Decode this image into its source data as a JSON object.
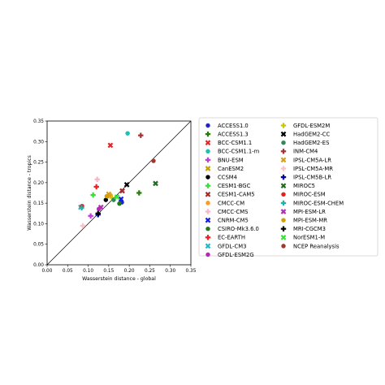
{
  "chart_data": {
    "type": "scatter",
    "title": "",
    "xlabel": "Wasserstein distance - global",
    "ylabel": "Wasserstein distance - tropics",
    "xlim": [
      0.0,
      0.35
    ],
    "ylim": [
      0.0,
      0.35
    ],
    "xticks": [
      "0.00",
      "0.05",
      "0.10",
      "0.15",
      "0.20",
      "0.25",
      "0.30",
      "0.35"
    ],
    "yticks": [
      "0.00",
      "0.05",
      "0.10",
      "0.15",
      "0.20",
      "0.25",
      "0.30",
      "0.35"
    ],
    "grid": false,
    "reference_line": "y = x",
    "legend_position": "right",
    "series": [
      {
        "name": "ACCESS1.0",
        "color": "#1f24c9",
        "marker": "circle",
        "x": 0.182,
        "y": 0.152
      },
      {
        "name": "ACCESS1.3",
        "color": "#2b7a0b",
        "marker": "plus",
        "x": 0.224,
        "y": 0.175
      },
      {
        "name": "BCC-CSM1.1",
        "color": "#e8232c",
        "marker": "x",
        "x": 0.154,
        "y": 0.291
      },
      {
        "name": "BCC-CSM1.1-m",
        "color": "#1bbfb5",
        "marker": "circle",
        "x": 0.196,
        "y": 0.32
      },
      {
        "name": "BNU-ESM",
        "color": "#c03fd8",
        "marker": "plus",
        "x": 0.106,
        "y": 0.119
      },
      {
        "name": "CanESM2",
        "color": "#c8a000",
        "marker": "x",
        "x": 0.153,
        "y": 0.168
      },
      {
        "name": "CCSM4",
        "color": "#000000",
        "marker": "circle",
        "x": 0.143,
        "y": 0.158
      },
      {
        "name": "CESM1-BGC",
        "color": "#35e035",
        "marker": "plus",
        "x": 0.112,
        "y": 0.17
      },
      {
        "name": "CESM1-CAM5",
        "color": "#a52a2a",
        "marker": "x",
        "x": 0.183,
        "y": 0.18
      },
      {
        "name": "CMCC-CM",
        "color": "#ff9a1a",
        "marker": "circle",
        "x": 0.155,
        "y": 0.168
      },
      {
        "name": "CMCC-CMS",
        "color": "#ffb3c6",
        "marker": "plus",
        "x": 0.122,
        "y": 0.208
      },
      {
        "name": "CNRM-CM5",
        "color": "#1a1ae6",
        "marker": "x",
        "x": 0.18,
        "y": 0.16
      },
      {
        "name": "CSIRO-Mk3.6.0",
        "color": "#1f7a1f",
        "marker": "circle",
        "x": 0.176,
        "y": 0.149
      },
      {
        "name": "EC-EARTH",
        "color": "#f21f1f",
        "marker": "plus",
        "x": 0.12,
        "y": 0.19
      },
      {
        "name": "GFDL-CM3",
        "color": "#2ab5c8",
        "marker": "x",
        "x": 0.082,
        "y": 0.14
      },
      {
        "name": "GFDL-ESM2G",
        "color": "#c01fc0",
        "marker": "circle",
        "x": 0.126,
        "y": 0.136
      },
      {
        "name": "GFDL-ESM2M",
        "color": "#c8c800",
        "marker": "plus",
        "x": 0.158,
        "y": 0.163
      },
      {
        "name": "HadGEM2-CC",
        "color": "#000000",
        "marker": "x",
        "x": 0.194,
        "y": 0.195
      },
      {
        "name": "HadGEM2-ES",
        "color": "#2e8b57",
        "marker": "circle",
        "x": 0.162,
        "y": 0.158
      },
      {
        "name": "INM-CM4",
        "color": "#a83232",
        "marker": "plus",
        "x": 0.228,
        "y": 0.315
      },
      {
        "name": "IPSL-CM5A-LR",
        "color": "#d4a017",
        "marker": "x",
        "x": 0.15,
        "y": 0.172
      },
      {
        "name": "IPSL-CM5A-MR",
        "color": "#ffc0cb",
        "marker": "plus",
        "x": 0.087,
        "y": 0.095
      },
      {
        "name": "IPSL-CM5B-LR",
        "color": "#0000a0",
        "marker": "plus",
        "x": 0.124,
        "y": 0.122
      },
      {
        "name": "MIROC5",
        "color": "#1f6b1f",
        "marker": "x",
        "x": 0.264,
        "y": 0.198
      },
      {
        "name": "MIROC-ESM",
        "color": "#e61f1f",
        "marker": "circle",
        "x": 0.085,
        "y": 0.143
      },
      {
        "name": "MIROC-ESM-CHEM",
        "color": "#20b2aa",
        "marker": "plus",
        "x": 0.084,
        "y": 0.139
      },
      {
        "name": "MPI-ESM-LR",
        "color": "#b030b0",
        "marker": "x",
        "x": 0.131,
        "y": 0.14
      },
      {
        "name": "MPI-ESM-MR",
        "color": "#d4a000",
        "marker": "circle",
        "x": 0.145,
        "y": 0.167
      },
      {
        "name": "MRI-CGCM3",
        "color": "#000000",
        "marker": "plus",
        "x": 0.124,
        "y": 0.125
      },
      {
        "name": "NorESM1-M",
        "color": "#32e632",
        "marker": "x",
        "x": 0.17,
        "y": 0.165
      },
      {
        "name": "NCEP Reanalysis",
        "color": "#a0392d",
        "marker": "circle",
        "x": 0.259,
        "y": 0.253
      }
    ]
  }
}
